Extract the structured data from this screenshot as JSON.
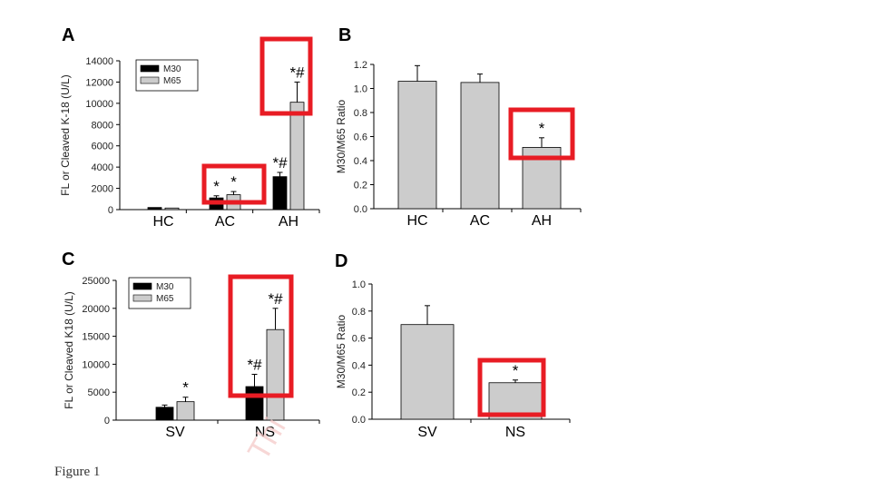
{
  "figure": {
    "caption": "Figure 1",
    "watermark": "Thi",
    "highlight_color": "#e81c24",
    "bar_dark": "#000000",
    "bar_light": "#cccccc"
  },
  "chart_data": [
    {
      "panel": "A",
      "type": "bar",
      "ylabel": "FL or Cleaved K-18 (U/L)",
      "ylim": [
        0,
        14000
      ],
      "yticks": [
        "0",
        "2000",
        "4000",
        "6000",
        "8000",
        "10000",
        "12000",
        "14000"
      ],
      "categories": [
        "HC",
        "AC",
        "AH"
      ],
      "legend": [
        "M30",
        "M65"
      ],
      "legend_position": "top-left",
      "series": [
        {
          "name": "M30",
          "color": "#000000",
          "values": [
            200,
            1100,
            3100
          ],
          "errors": [
            0,
            200,
            400
          ],
          "markers": [
            "",
            "*",
            "*#"
          ]
        },
        {
          "name": "M65",
          "color": "#cccccc",
          "values": [
            150,
            1400,
            10100
          ],
          "errors": [
            0,
            300,
            1900
          ],
          "markers": [
            "",
            "*",
            "*#"
          ]
        }
      ]
    },
    {
      "panel": "B",
      "type": "bar",
      "ylabel": "M30/M65 Ratio",
      "ylim": [
        0,
        1.2
      ],
      "yticks": [
        "0.0",
        "0.2",
        "0.4",
        "0.6",
        "0.8",
        "1.0",
        "1.2"
      ],
      "categories": [
        "HC",
        "AC",
        "AH"
      ],
      "series": [
        {
          "color": "#cccccc",
          "values": [
            1.06,
            1.05,
            0.51
          ],
          "errors": [
            0.13,
            0.07,
            0.08
          ],
          "markers": [
            "",
            "",
            "*"
          ]
        }
      ]
    },
    {
      "panel": "C",
      "type": "bar",
      "ylabel": "FL or Cleaved K18 (U/L)",
      "ylim": [
        0,
        25000
      ],
      "yticks": [
        "0",
        "5000",
        "10000",
        "15000",
        "20000",
        "25000"
      ],
      "categories": [
        "SV",
        "NS"
      ],
      "legend": [
        "M30",
        "M65"
      ],
      "legend_position": "top-left",
      "series": [
        {
          "name": "M30",
          "color": "#000000",
          "values": [
            2300,
            6000
          ],
          "errors": [
            400,
            2200
          ],
          "markers": [
            "",
            "*#"
          ]
        },
        {
          "name": "M65",
          "color": "#cccccc",
          "values": [
            3300,
            16200
          ],
          "errors": [
            800,
            3800
          ],
          "markers": [
            "*",
            "*#"
          ]
        }
      ]
    },
    {
      "panel": "D",
      "type": "bar",
      "ylabel": "M30/M65 Ratio",
      "ylim": [
        0,
        1.0
      ],
      "yticks": [
        "0.0",
        "0.2",
        "0.4",
        "0.6",
        "0.8",
        "1.0"
      ],
      "categories": [
        "SV",
        "NS"
      ],
      "series": [
        {
          "color": "#cccccc",
          "values": [
            0.7,
            0.27
          ],
          "errors": [
            0.14,
            0.02
          ],
          "markers": [
            "",
            "*"
          ]
        }
      ]
    }
  ]
}
